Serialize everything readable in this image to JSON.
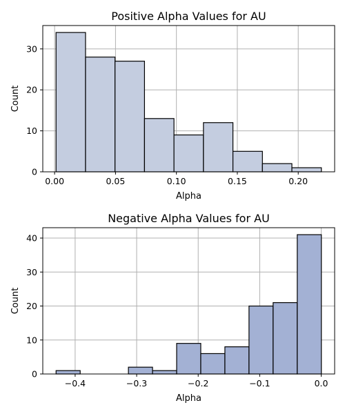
{
  "chart_data": [
    {
      "type": "bar",
      "title": "Positive Alpha Values for AU",
      "xlabel": "Alpha",
      "ylabel": "Count",
      "bin_edges": [
        0.0012,
        0.0254,
        0.0496,
        0.0738,
        0.098,
        0.1222,
        0.1464,
        0.1706,
        0.1948,
        0.219
      ],
      "values": [
        34,
        28,
        27,
        13,
        9,
        12,
        5,
        2,
        1
      ],
      "xlim": [
        -0.0097,
        0.2299
      ],
      "ylim": [
        0,
        35.7
      ],
      "xticks": [
        0.0,
        0.05,
        0.1,
        0.15,
        0.2
      ],
      "xtick_labels": [
        "0.00",
        "0.05",
        "0.10",
        "0.15",
        "0.20"
      ],
      "yticks": [
        0,
        10,
        20,
        30
      ],
      "ytick_labels": [
        "0",
        "10",
        "20",
        "30"
      ],
      "grid": true,
      "bar_color": "#c4cde0",
      "edge_color": "#000000"
    },
    {
      "type": "bar",
      "title": "Negative Alpha Values for AU",
      "xlabel": "Alpha",
      "ylabel": "Count",
      "bin_edges": [
        -0.431,
        -0.3918,
        -0.3526,
        -0.3134,
        -0.2742,
        -0.235,
        -0.1958,
        -0.1566,
        -0.1174,
        -0.0782,
        -0.039,
        0.0002
      ],
      "values": [
        1,
        0,
        0,
        2,
        1,
        9,
        6,
        8,
        20,
        21,
        41
      ],
      "xlim": [
        -0.4526,
        0.0218
      ],
      "ylim": [
        0,
        43.05
      ],
      "xticks": [
        -0.4,
        -0.3,
        -0.2,
        -0.1,
        0.0
      ],
      "xtick_labels": [
        "−0.4",
        "−0.3",
        "−0.2",
        "−0.1",
        "0.0"
      ],
      "yticks": [
        0,
        10,
        20,
        30,
        40
      ],
      "ytick_labels": [
        "0",
        "10",
        "20",
        "30",
        "40"
      ],
      "grid": true,
      "bar_color": "#a3b1d4",
      "edge_color": "#000000"
    }
  ]
}
